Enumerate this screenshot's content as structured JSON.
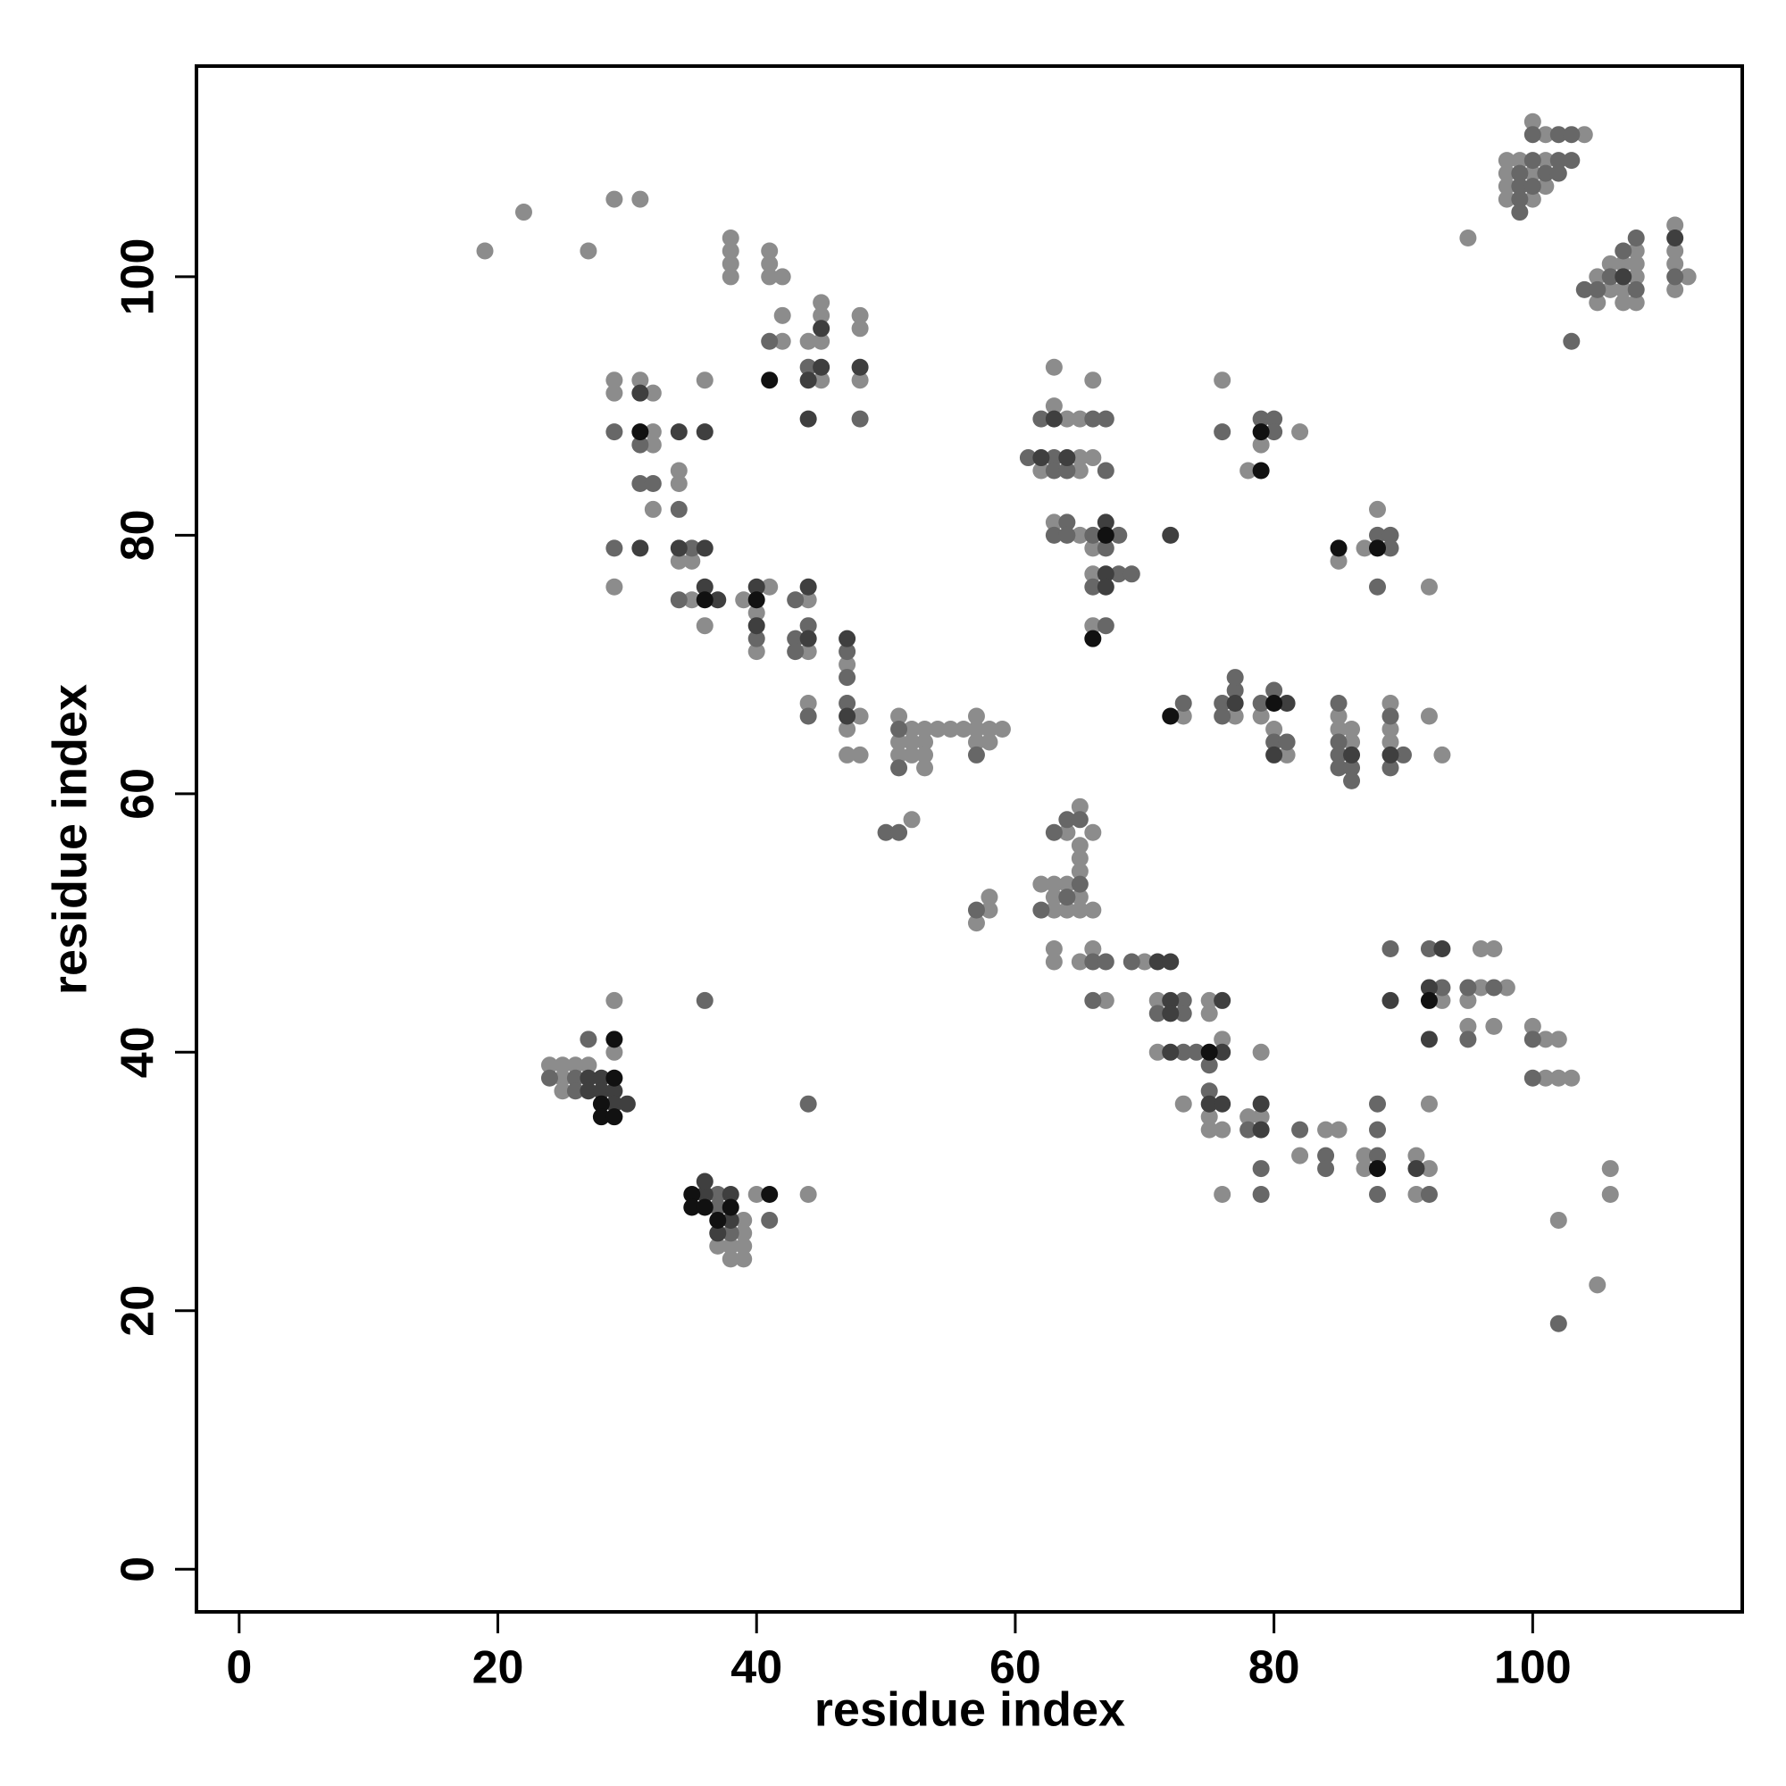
{
  "chart_data": {
    "type": "scatter",
    "x_label": "residue index",
    "y_label": "residue index",
    "xlim": [
      -3.3,
      116.2
    ],
    "ylim": [
      -3.3,
      116.3
    ],
    "xticks": [
      0,
      20,
      40,
      60,
      80,
      100
    ],
    "yticks": [
      0,
      20,
      40,
      60,
      80,
      100
    ],
    "series": [
      {
        "color": "#8c8c8c",
        "x": [
          19,
          22,
          27,
          29,
          31,
          38,
          38,
          38,
          38,
          41,
          41,
          41,
          42,
          42,
          42,
          44,
          45,
          45,
          45,
          45,
          48,
          48,
          48,
          29,
          29,
          31,
          32,
          32,
          32,
          36,
          32,
          34,
          34,
          29,
          34,
          35,
          35,
          36,
          39,
          41,
          40,
          40,
          44,
          44,
          47,
          44,
          48,
          47,
          47,
          48,
          51,
          51,
          51,
          52,
          52,
          52,
          53,
          53,
          53,
          53,
          54,
          55,
          56,
          57,
          57,
          57,
          58,
          58,
          59,
          52,
          58,
          58,
          57,
          63,
          66,
          63,
          64,
          65,
          65,
          66,
          62,
          65,
          63,
          65,
          66,
          66,
          66,
          73,
          76,
          82,
          79,
          78,
          85,
          87,
          88,
          92,
          77,
          79,
          80,
          81,
          85,
          85,
          86,
          86,
          89,
          89,
          89,
          92,
          93,
          65,
          64,
          66,
          65,
          65,
          65,
          62,
          63,
          64,
          63,
          65,
          63,
          64,
          65,
          66,
          63,
          63,
          65,
          66,
          67,
          70,
          71,
          75,
          75,
          71,
          76,
          79,
          73,
          75,
          75,
          76,
          76,
          78,
          79,
          84,
          85,
          82,
          87,
          87,
          91,
          92,
          91,
          92,
          93,
          96,
          98,
          96,
          97,
          95,
          95,
          97,
          100,
          101,
          102,
          101,
          102,
          103,
          106,
          106,
          102,
          105,
          95,
          98,
          98,
          98,
          98,
          99,
          100,
          100,
          100,
          101,
          101,
          101,
          104,
          105,
          105,
          106,
          106,
          107,
          107,
          107,
          108,
          108,
          108,
          108,
          111,
          111,
          111,
          111,
          112,
          24,
          25,
          26,
          27,
          25,
          25,
          29,
          29,
          44,
          39,
          39,
          37,
          38,
          39,
          38,
          39,
          40
        ],
        "values": [
          102,
          105,
          102,
          106,
          106,
          103,
          102,
          101,
          100,
          102,
          101,
          100,
          100,
          95,
          97,
          95,
          97,
          98,
          95,
          92,
          97,
          96,
          92,
          92,
          91,
          92,
          91,
          88,
          87,
          92,
          82,
          85,
          84,
          76,
          78,
          78,
          75,
          73,
          75,
          76,
          74,
          71,
          75,
          71,
          70,
          67,
          66,
          65,
          63,
          63,
          66,
          64,
          63,
          65,
          64,
          63,
          65,
          64,
          63,
          62,
          65,
          65,
          65,
          66,
          65,
          64,
          65,
          64,
          65,
          58,
          52,
          51,
          50,
          93,
          92,
          90,
          89,
          89,
          86,
          86,
          85,
          85,
          81,
          80,
          79,
          77,
          73,
          66,
          92,
          88,
          87,
          85,
          78,
          79,
          82,
          76,
          66,
          66,
          65,
          63,
          66,
          65,
          65,
          64,
          67,
          65,
          64,
          66,
          63,
          59,
          57,
          57,
          56,
          55,
          54,
          53,
          53,
          53,
          52,
          52,
          51,
          51,
          51,
          51,
          48,
          47,
          47,
          48,
          44,
          47,
          44,
          44,
          43,
          40,
          41,
          40,
          36,
          35,
          34,
          34,
          29,
          35,
          35,
          34,
          34,
          32,
          32,
          31,
          32,
          31,
          29,
          36,
          44,
          45,
          45,
          48,
          48,
          44,
          42,
          42,
          42,
          41,
          41,
          38,
          38,
          38,
          31,
          29,
          27,
          22,
          103,
          109,
          108,
          107,
          106,
          109,
          112,
          108,
          106,
          111,
          109,
          107,
          111,
          100,
          98,
          101,
          99,
          101,
          99,
          98,
          102,
          101,
          100,
          98,
          104,
          102,
          101,
          99,
          100,
          39,
          39,
          39,
          39,
          38,
          37,
          40,
          44,
          29,
          27,
          26,
          25,
          25,
          25,
          24,
          24,
          29
        ]
      },
      {
        "color": "#676767",
        "x": [
          41,
          44,
          48,
          29,
          31,
          31,
          32,
          34,
          29,
          35,
          34,
          40,
          43,
          44,
          43,
          43,
          47,
          47,
          44,
          47,
          51,
          51,
          50,
          51,
          57,
          57,
          62,
          66,
          67,
          61,
          63,
          63,
          64,
          67,
          64,
          63,
          64,
          66,
          68,
          67,
          68,
          69,
          66,
          67,
          73,
          76,
          79,
          80,
          80,
          88,
          89,
          89,
          88,
          76,
          77,
          77,
          76,
          79,
          80,
          80,
          81,
          85,
          85,
          85,
          85,
          86,
          86,
          89,
          90,
          89,
          64,
          65,
          63,
          65,
          64,
          62,
          66,
          67,
          66,
          69,
          73,
          71,
          73,
          73,
          74,
          75,
          75,
          78,
          79,
          79,
          82,
          84,
          84,
          88,
          88,
          88,
          88,
          92,
          89,
          92,
          93,
          95,
          97,
          95,
          100,
          100,
          102,
          99,
          99,
          99,
          99,
          100,
          100,
          100,
          101,
          102,
          102,
          102,
          103,
          103,
          103,
          104,
          105,
          106,
          107,
          108,
          108,
          111,
          24,
          26,
          26,
          27,
          36,
          44,
          37,
          37,
          38,
          41
        ],
        "values": [
          95,
          93,
          89,
          88,
          87,
          84,
          84,
          82,
          79,
          79,
          75,
          72,
          75,
          73,
          72,
          71,
          71,
          69,
          66,
          67,
          65,
          62,
          57,
          57,
          63,
          51,
          89,
          89,
          89,
          86,
          86,
          85,
          85,
          85,
          81,
          80,
          80,
          80,
          80,
          79,
          77,
          77,
          76,
          73,
          67,
          88,
          89,
          89,
          88,
          80,
          80,
          79,
          76,
          67,
          68,
          69,
          66,
          67,
          68,
          64,
          64,
          67,
          64,
          63,
          62,
          62,
          61,
          66,
          63,
          62,
          58,
          58,
          57,
          53,
          52,
          51,
          47,
          47,
          44,
          47,
          44,
          43,
          43,
          40,
          40,
          39,
          37,
          34,
          31,
          29,
          34,
          32,
          31,
          32,
          34,
          36,
          29,
          29,
          48,
          48,
          45,
          45,
          45,
          41,
          41,
          38,
          19,
          108,
          107,
          106,
          105,
          111,
          109,
          107,
          108,
          111,
          109,
          108,
          111,
          109,
          95,
          99,
          99,
          100,
          102,
          103,
          99,
          100,
          38,
          38,
          37,
          41,
          44,
          36,
          29,
          28,
          26,
          27
        ]
      },
      {
        "color": "#3f3f3f",
        "x": [
          44,
          45,
          45,
          44,
          48,
          31,
          34,
          36,
          31,
          34,
          36,
          36,
          37,
          40,
          40,
          44,
          44,
          47,
          47,
          63,
          62,
          64,
          67,
          67,
          67,
          72,
          77,
          81,
          80,
          86,
          89,
          71,
          72,
          72,
          72,
          76,
          72,
          76,
          75,
          76,
          79,
          79,
          91,
          89,
          93,
          92,
          92,
          107,
          111,
          27,
          28,
          27,
          28,
          29,
          29,
          30,
          36,
          38,
          36,
          38,
          37
        ],
        "values": [
          92,
          96,
          93,
          89,
          93,
          91,
          88,
          88,
          79,
          79,
          79,
          76,
          75,
          76,
          73,
          76,
          72,
          72,
          66,
          89,
          86,
          86,
          81,
          77,
          76,
          80,
          67,
          67,
          63,
          63,
          63,
          47,
          47,
          44,
          43,
          44,
          40,
          40,
          36,
          36,
          34,
          36,
          31,
          44,
          48,
          45,
          41,
          100,
          103,
          38,
          38,
          37,
          37,
          37,
          36,
          36,
          29,
          29,
          30,
          27,
          26
        ]
      },
      {
        "color": "#111111",
        "x": [
          41,
          31,
          36,
          40,
          67,
          66,
          72,
          79,
          79,
          85,
          88,
          80,
          75,
          88,
          92,
          29,
          29,
          28,
          28,
          29,
          35,
          35,
          36,
          38,
          37,
          41
        ],
        "values": [
          92,
          88,
          75,
          75,
          80,
          72,
          66,
          88,
          85,
          79,
          79,
          67,
          40,
          31,
          44,
          38,
          41,
          36,
          35,
          35,
          29,
          28,
          28,
          28,
          27,
          29
        ]
      }
    ]
  }
}
